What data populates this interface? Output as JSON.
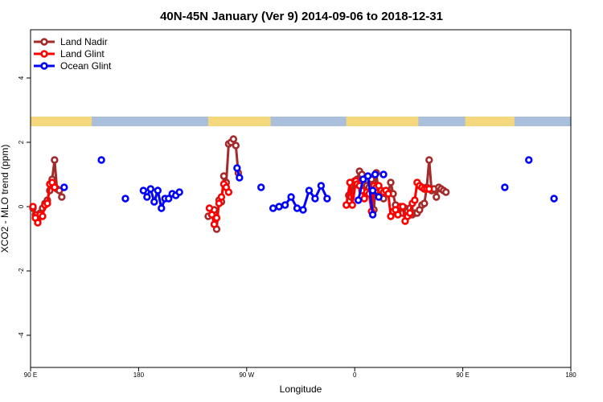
{
  "chart_data": {
    "type": "line",
    "title": "40N-45N January (Ver 9)   2014-09-06 to 2018-12-31",
    "xlabel": "Longitude",
    "ylabel": "XCO2 - MLO trend (ppm)",
    "xlim": [
      90,
      540
    ],
    "ylim": [
      -5,
      5.5
    ],
    "xticks": [
      {
        "value": 90,
        "label": "90 E"
      },
      {
        "value": 180,
        "label": "180"
      },
      {
        "value": 270,
        "label": "90 W"
      },
      {
        "value": 360,
        "label": "0"
      },
      {
        "value": 450,
        "label": "90 E"
      },
      {
        "value": 540,
        "label": "180"
      }
    ],
    "yticks": [
      {
        "value": -4,
        "label": "-4"
      },
      {
        "value": -2,
        "label": "-2"
      },
      {
        "value": 0,
        "label": "0"
      },
      {
        "value": 2,
        "label": "2"
      },
      {
        "value": 4,
        "label": "4"
      }
    ],
    "legend_position": "top-left",
    "land_strip": {
      "y_range": [
        2.5,
        2.8
      ],
      "land_color": "#f5d77e",
      "ocean_color": "#a9bfdc",
      "land_segments": [
        [
          90,
          141
        ],
        [
          238,
          290
        ],
        [
          353,
          413
        ],
        [
          452,
          493
        ]
      ]
    },
    "series": [
      {
        "name": "Land Nadir",
        "color": "#a52a2a",
        "segments": [
          {
            "x": [
              92,
              94,
              96,
              98,
              100,
              102,
              104,
              106,
              108,
              110,
              112,
              114,
              116
            ],
            "y": [
              -0.05,
              -0.25,
              -0.45,
              -0.2,
              -0.05,
              0.1,
              0.2,
              0.5,
              0.85,
              1.45,
              0.55,
              0.5,
              0.3
            ]
          },
          {
            "x": [
              238,
              241,
              243,
              245,
              247,
              249,
              251,
              253,
              255,
              257,
              259,
              261,
              263
            ],
            "y": [
              -0.3,
              -0.25,
              -0.1,
              -0.7,
              0.2,
              0.15,
              0.95,
              0.75,
              1.95,
              2.0,
              2.1,
              1.9,
              1.05
            ]
          },
          {
            "x": [
              355,
              357,
              359,
              360,
              362,
              364,
              366,
              368,
              370,
              372,
              374,
              376,
              378,
              380,
              382,
              384,
              386,
              388,
              390,
              392,
              394,
              396,
              398,
              400,
              402,
              404,
              406,
              408,
              410,
              412,
              414,
              416,
              418,
              420,
              422,
              424,
              426,
              428,
              430,
              432,
              434,
              436
            ],
            "y": [
              0.35,
              0.3,
              0.75,
              0.8,
              0.85,
              1.1,
              1.0,
              0.7,
              0.65,
              0.6,
              0.85,
              -0.1,
              1.05,
              0.35,
              0.5,
              0.25,
              0.5,
              0.45,
              0.75,
              0.4,
              0.05,
              -0.1,
              -0.15,
              -0.2,
              -0.05,
              -0.15,
              -0.05,
              -0.25,
              -0.2,
              -0.2,
              -0.1,
              0.05,
              0.1,
              0.6,
              1.45,
              0.5,
              0.55,
              0.3,
              0.6,
              0.55,
              0.5,
              0.45
            ]
          }
        ]
      },
      {
        "name": "Land Glint",
        "color": "#ff0000",
        "segments": [
          {
            "x": [
              92,
              94,
              96,
              98,
              100,
              102,
              104,
              106,
              108,
              110
            ],
            "y": [
              0.0,
              -0.35,
              -0.5,
              -0.25,
              -0.3,
              0.05,
              0.1,
              0.7,
              0.75,
              0.6
            ]
          },
          {
            "x": [
              239,
              241,
              243,
              245,
              247,
              249,
              251,
              253,
              255
            ],
            "y": [
              -0.05,
              -0.25,
              -0.55,
              -0.35,
              0.1,
              0.3,
              0.7,
              0.6,
              0.45
            ]
          },
          {
            "x": [
              353,
              356,
              358,
              361,
              362,
              364,
              366,
              368,
              370,
              372,
              374,
              376,
              378,
              380,
              382,
              384,
              386,
              388,
              390,
              392,
              394,
              396,
              398,
              400,
              402,
              404,
              406,
              408,
              410,
              412,
              414,
              416,
              418,
              420,
              422
            ],
            "y": [
              0.05,
              0.75,
              0.05,
              0.8,
              0.7,
              0.65,
              0.5,
              0.25,
              0.45,
              0.4,
              -0.15,
              0.65,
              0.6,
              0.65,
              0.5,
              0.45,
              0.5,
              0.4,
              -0.3,
              -0.15,
              -0.1,
              -0.25,
              0.0,
              0.0,
              -0.45,
              -0.3,
              -0.2,
              0.1,
              0.2,
              0.75,
              0.65,
              0.6,
              0.55,
              0.55,
              0.55
            ]
          }
        ]
      },
      {
        "name": "Ocean Glint",
        "color": "#0000ff",
        "segments": [
          {
            "x": [
              118
            ],
            "y": [
              0.6
            ]
          },
          {
            "x": [
              149
            ],
            "y": [
              1.45
            ]
          },
          {
            "x": [
              169
            ],
            "y": [
              0.25
            ]
          },
          {
            "x": [
              184,
              187,
              190,
              193,
              196,
              199,
              202,
              205,
              208,
              211,
              214
            ],
            "y": [
              0.5,
              0.3,
              0.55,
              0.15,
              0.5,
              -0.05,
              0.25,
              0.25,
              0.4,
              0.35,
              0.45
            ]
          },
          {
            "x": [
              262,
              264
            ],
            "y": [
              1.2,
              0.9
            ]
          },
          {
            "x": [
              282
            ],
            "y": [
              0.6
            ]
          },
          {
            "x": [
              292,
              297,
              302,
              307,
              312,
              317,
              322,
              327,
              332,
              337
            ],
            "y": [
              -0.05,
              0.0,
              0.05,
              0.3,
              -0.05,
              -0.1,
              0.5,
              0.25,
              0.65,
              0.25
            ]
          },
          {
            "x": [
              363,
              367,
              371,
              375
            ],
            "y": [
              0.2,
              0.85,
              0.95,
              -0.25
            ]
          },
          {
            "x": [
              377
            ],
            "y": [
              1.0
            ]
          },
          {
            "x": [
              384
            ],
            "y": [
              1.0
            ]
          },
          {
            "x": [
              375,
              380
            ],
            "y": [
              0.5,
              0.3
            ]
          },
          {
            "x": [
              485
            ],
            "y": [
              0.6
            ]
          },
          {
            "x": [
              505
            ],
            "y": [
              1.45
            ]
          },
          {
            "x": [
              526
            ],
            "y": [
              0.25
            ]
          }
        ]
      }
    ]
  }
}
